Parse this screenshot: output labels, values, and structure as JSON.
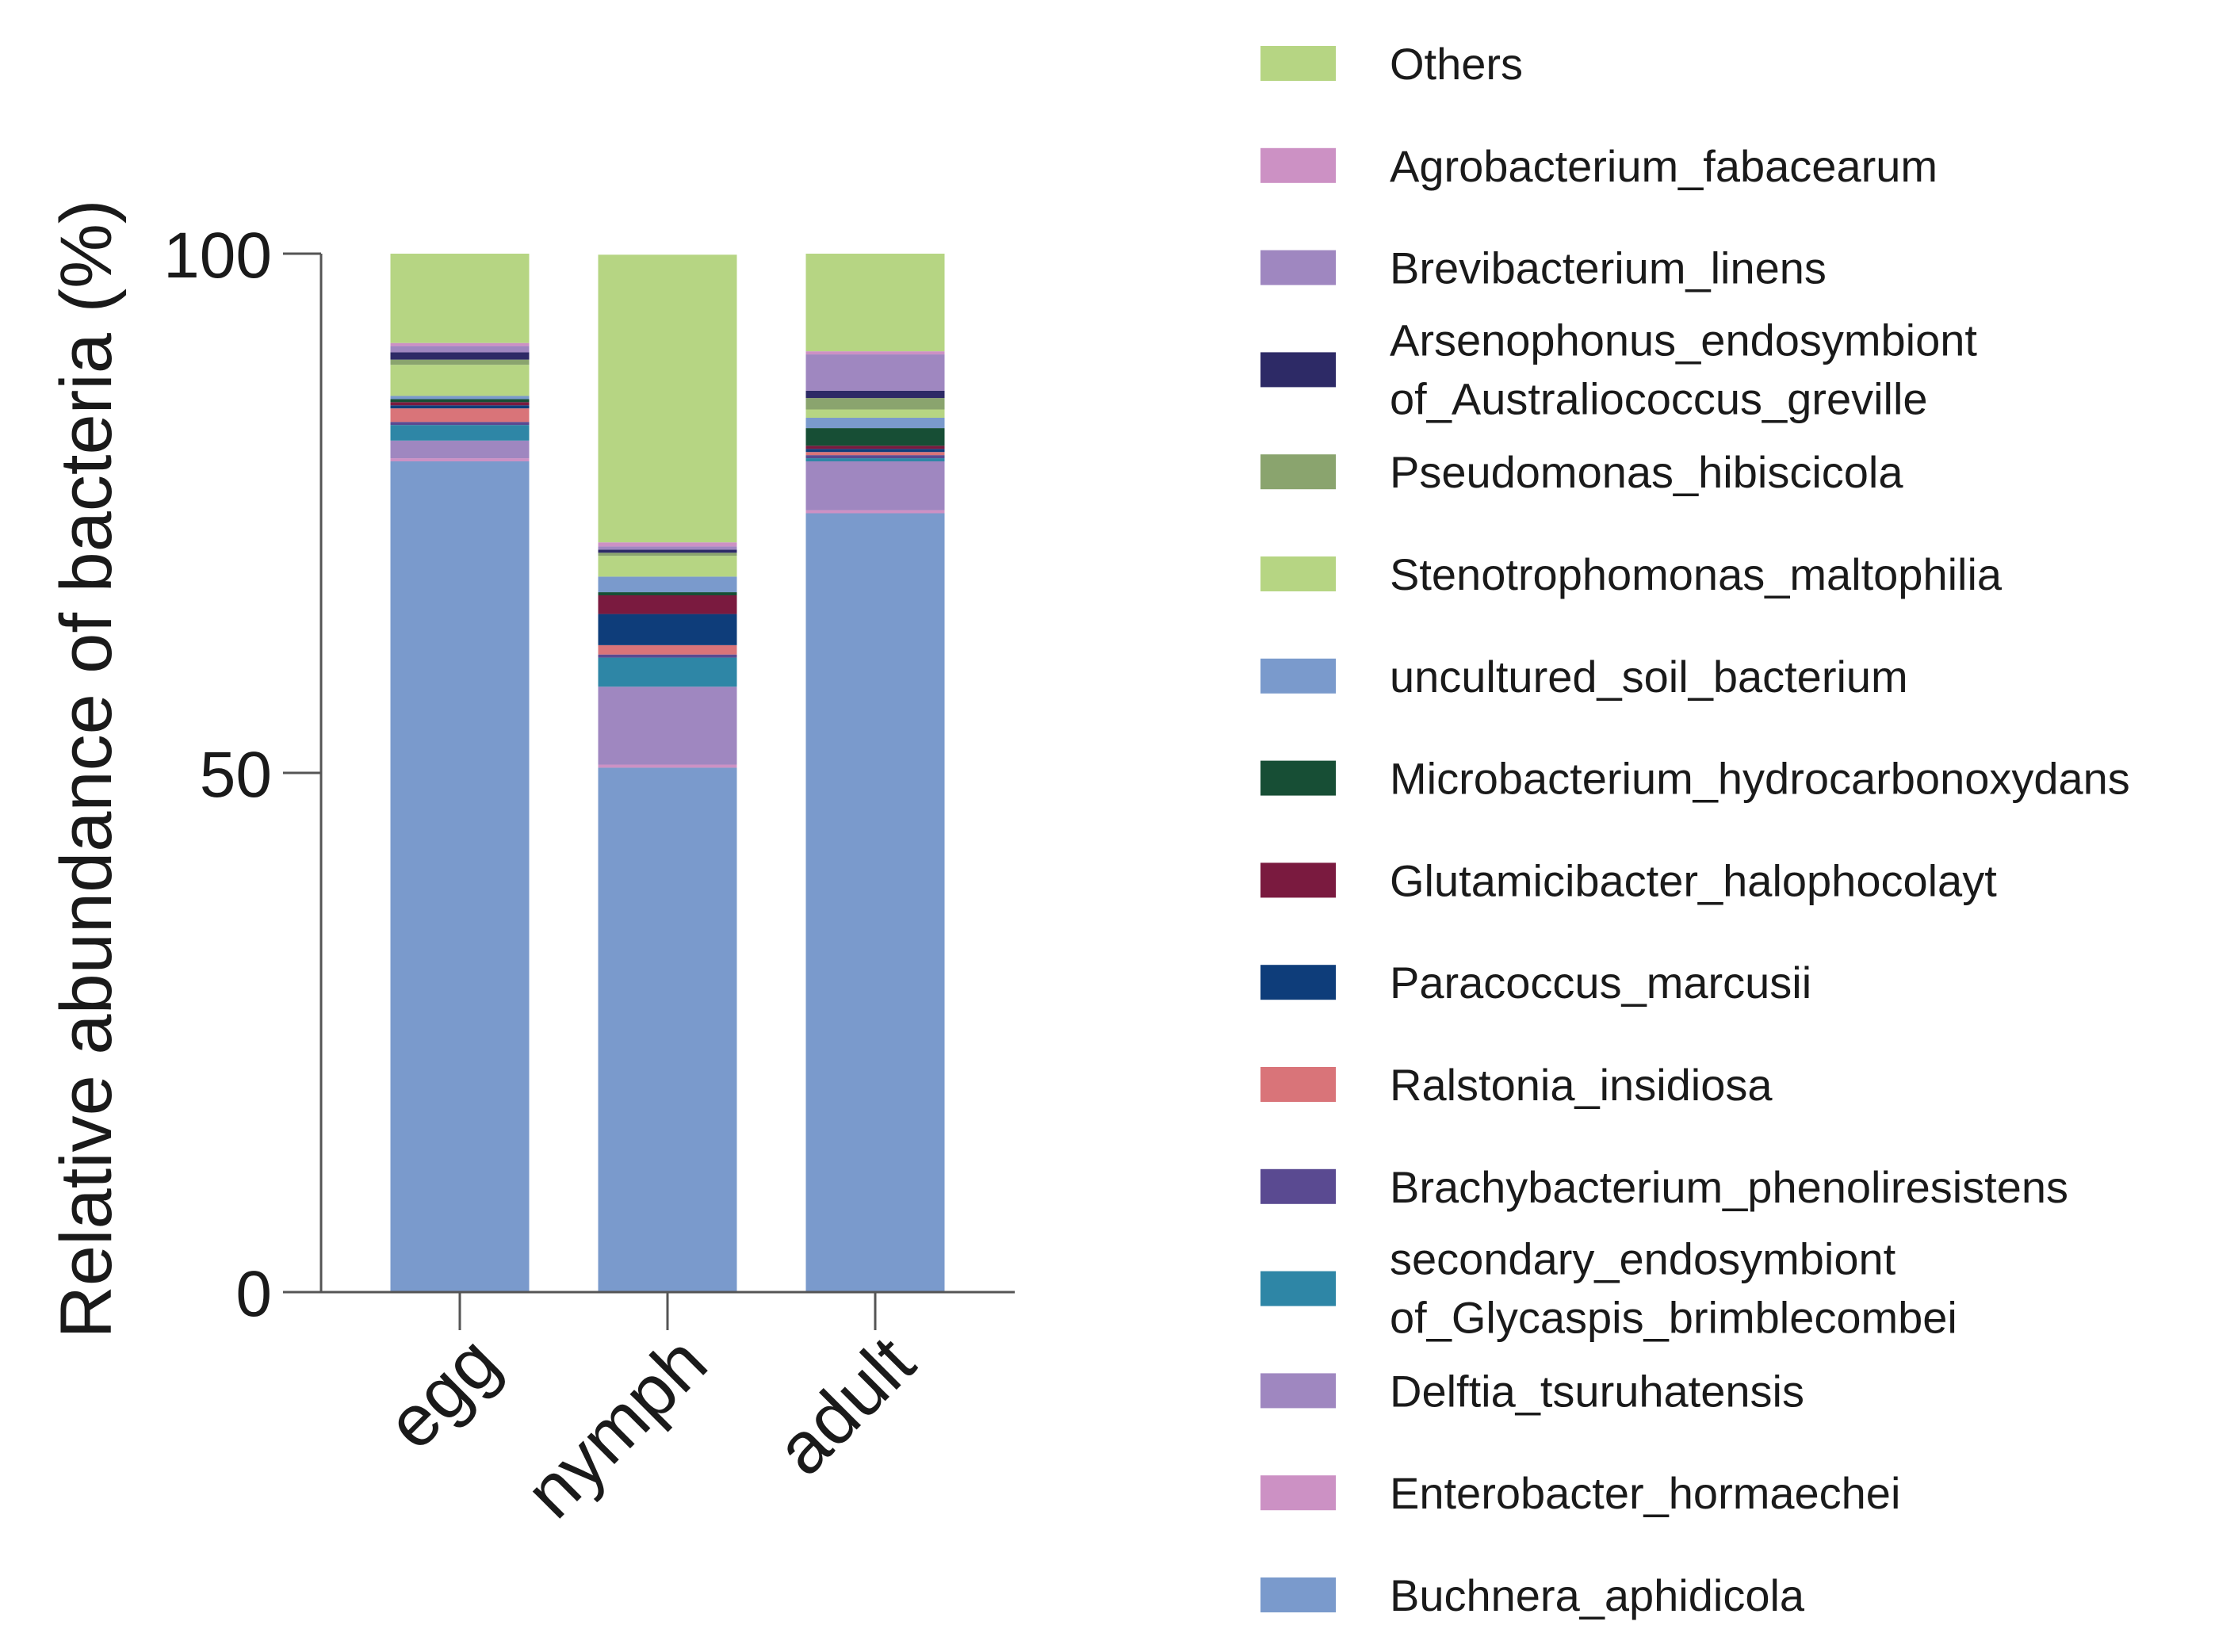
{
  "chart_data": {
    "type": "bar",
    "stacked": true,
    "title": "",
    "xlabel": "",
    "ylabel": "Relative abundance of bacteria (%)",
    "ylim": [
      0,
      100
    ],
    "yticks": [
      "0",
      "50",
      "100"
    ],
    "categories": [
      "egg",
      "nymph",
      "adult"
    ],
    "legend_position": "right",
    "series": [
      {
        "name": "Buchnera_aphidicola",
        "color": "#7a9acc",
        "values": [
          80.0,
          50.5,
          75.0
        ]
      },
      {
        "name": "Enterobacter_hormaechei",
        "color": "#cc91c4",
        "values": [
          0.3,
          0.3,
          0.3
        ]
      },
      {
        "name": "Delftia_tsuruhatensis",
        "color": "#9f87c0",
        "values": [
          1.7,
          7.5,
          4.7
        ]
      },
      {
        "name": "secondary_endosymbiont\nof_Glycaspis_brimblecombei",
        "color": "#2e86a6",
        "values": [
          1.5,
          2.8,
          0.3
        ]
      },
      {
        "name": "Brachybacterium_phenoliresistens",
        "color": "#5a4a91",
        "values": [
          0.3,
          0.3,
          0.3
        ]
      },
      {
        "name": "Ralstonia_insidiosa",
        "color": "#d97479",
        "values": [
          1.3,
          0.9,
          0.3
        ]
      },
      {
        "name": "Paracoccus_marcusii",
        "color": "#0e3d7a",
        "values": [
          0.3,
          3.0,
          0.3
        ]
      },
      {
        "name": "Glutamicibacter_halophocolayt",
        "color": "#7a1a3f",
        "values": [
          0.3,
          1.8,
          0.3
        ]
      },
      {
        "name": "Microbacterium_hydrocarbonoxydans",
        "color": "#174e35",
        "values": [
          0.3,
          0.3,
          1.7
        ]
      },
      {
        "name": "uncultured_soil_bacterium",
        "color": "#7a9acc",
        "values": [
          0.3,
          1.5,
          1.0
        ]
      },
      {
        "name": "Stenotrophomonas_maltophilia",
        "color": "#b6d583",
        "values": [
          3.0,
          2.0,
          0.8
        ]
      },
      {
        "name": "Pseudomonas_hibiscicola",
        "color": "#8aa46e",
        "values": [
          0.5,
          0.3,
          1.1
        ]
      },
      {
        "name": "Arsenophonus_endosymbiont\nof_Australiococcus_greville",
        "color": "#2d2a66",
        "values": [
          0.7,
          0.3,
          0.7
        ]
      },
      {
        "name": "Brevibacterium_linens",
        "color": "#9f87c0",
        "values": [
          0.6,
          0.3,
          3.5
        ]
      },
      {
        "name": "Agrobacterium_fabacearum",
        "color": "#cc91c4",
        "values": [
          0.3,
          0.4,
          0.3
        ]
      },
      {
        "name": "Others",
        "color": "#b6d583",
        "values": [
          8.6,
          27.7,
          9.4
        ]
      }
    ]
  }
}
